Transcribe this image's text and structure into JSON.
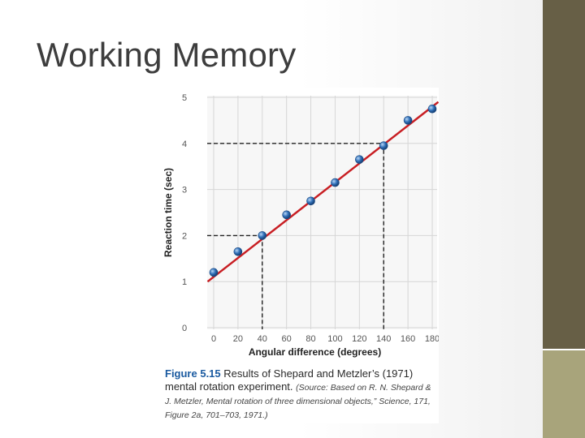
{
  "slide": {
    "title": "Working Memory",
    "colors": {
      "bar_dark": "#675f46",
      "bar_light": "#a8a47b"
    }
  },
  "caption": {
    "figure_number": "Figure 5.15",
    "title": "Results of Shepard and Metzler’s (1971) mental rotation experiment.",
    "source": "(Source: Based on R. N. Shepard & J. Metzler, Mental rotation of three dimensional objects,” Science, 171, Figure 2a, 701–703, 1971.)"
  },
  "chart_data": {
    "type": "scatter",
    "xlabel": "Angular difference (degrees)",
    "ylabel": "Reaction time (sec)",
    "x_ticks": [
      "0",
      "20",
      "40",
      "60",
      "80",
      "100",
      "120",
      "140",
      "160",
      "180"
    ],
    "y_ticks": [
      "0",
      "1",
      "2",
      "3",
      "4",
      "5"
    ],
    "xlim": [
      0,
      180
    ],
    "ylim": [
      0,
      5
    ],
    "grid": true,
    "series": [
      {
        "x": [
          0,
          20,
          40,
          60,
          80,
          100,
          120,
          140,
          160,
          180
        ],
        "y": [
          1.2,
          1.65,
          2.0,
          2.45,
          2.75,
          3.15,
          3.65,
          3.95,
          4.5,
          4.75
        ],
        "color": "#2f6fb8"
      }
    ],
    "fit_line": {
      "x": [
        -5,
        185
      ],
      "y": [
        1.0,
        4.9
      ],
      "color": "#c81e23"
    },
    "reference_lines": [
      {
        "x": 40,
        "y": 2
      },
      {
        "x": 140,
        "y": 4
      }
    ]
  }
}
